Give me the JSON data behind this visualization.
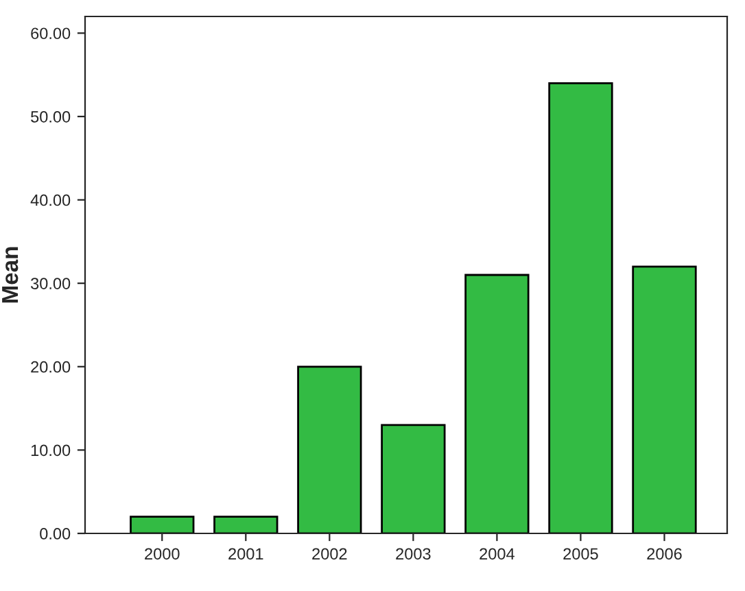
{
  "chart_data": {
    "type": "bar",
    "ylabel": "Mean",
    "categories": [
      "2000",
      "2001",
      "2002",
      "2003",
      "2004",
      "2005",
      "2006"
    ],
    "values": [
      2,
      2,
      20,
      13,
      31,
      54,
      32
    ],
    "color": "#33bb44",
    "ylim": [
      0,
      62
    ],
    "yticks": [
      {
        "value": 0,
        "label": "0.00"
      },
      {
        "value": 10,
        "label": "10.00"
      },
      {
        "value": 20,
        "label": "20.00"
      },
      {
        "value": 30,
        "label": "30.00"
      },
      {
        "value": 40,
        "label": "40.00"
      },
      {
        "value": 50,
        "label": "50.00"
      },
      {
        "value": 60,
        "label": "60.00"
      }
    ],
    "grid": false
  }
}
